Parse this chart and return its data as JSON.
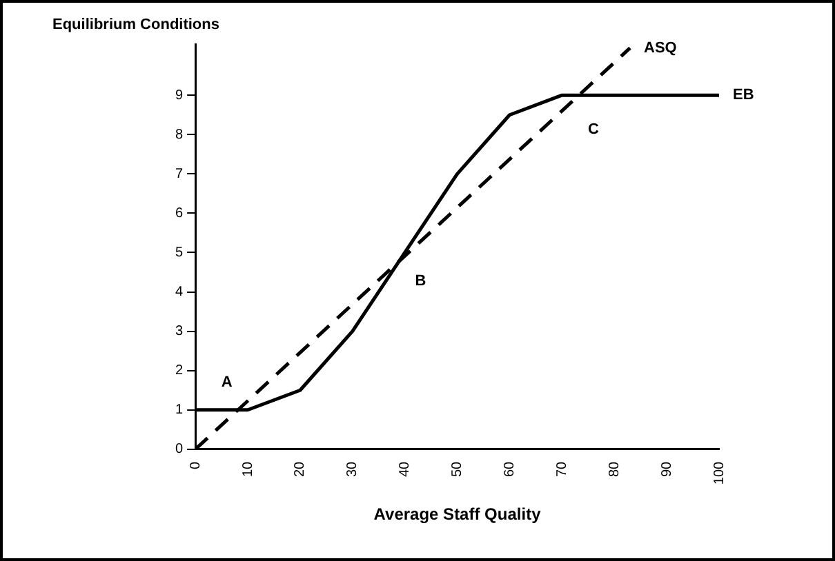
{
  "chart_data": {
    "type": "line",
    "title": "Equilibrium Conditions",
    "xlabel": "Average Staff Quality",
    "xlim": [
      0,
      100
    ],
    "xticks": [
      0,
      10,
      20,
      30,
      40,
      50,
      60,
      70,
      80,
      90,
      100
    ],
    "ylim": [
      0,
      10.3
    ],
    "yticks": [
      0,
      1,
      2,
      3,
      4,
      5,
      6,
      7,
      8,
      9
    ],
    "grid": false,
    "legend": false,
    "marker": "none",
    "series": [
      {
        "name": "EB",
        "color": "#000000",
        "line_style": "solid",
        "x": [
          0,
          10,
          20,
          30,
          40,
          50,
          60,
          70,
          100
        ],
        "values": [
          1,
          1,
          1.5,
          3,
          5,
          7,
          8.5,
          9,
          9
        ]
      },
      {
        "name": "ASQ",
        "color": "#000000",
        "line_style": "dashed",
        "x": [
          0,
          83
        ],
        "values": [
          0,
          10.2
        ]
      }
    ],
    "annotations": [
      "A",
      "B",
      "C"
    ]
  }
}
